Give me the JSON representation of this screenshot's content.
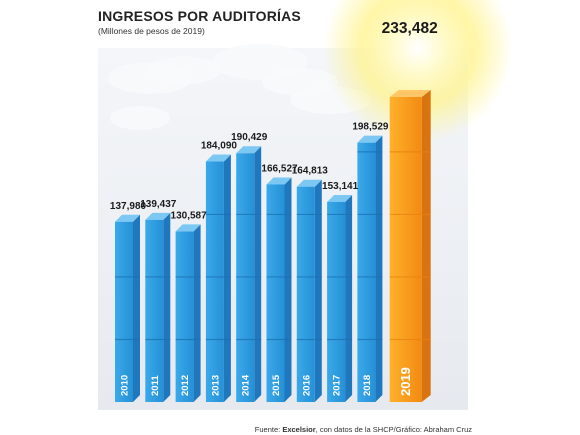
{
  "header": {
    "title": "INGRESOS POR AUDITORÍAS",
    "subtitle": "(Millones de pesos de 2019)"
  },
  "footer": {
    "source_prefix": "Fuente: ",
    "source_bold": "Excelsior",
    "source_rest": ", con datos de la SHCP/Gráfico: Abraham Cruz"
  },
  "colors": {
    "bar_blue": "#2e9be0",
    "bar_blue_dark": "#1c6fb3",
    "bar_orange": "#f7941d",
    "sun_glow": "#fff7a8",
    "sky": "#e9edf2"
  },
  "chart_data": {
    "type": "bar",
    "title": "INGRESOS POR AUDITORÍAS",
    "subtitle": "(Millones de pesos de 2019)",
    "xlabel": "",
    "ylabel": "",
    "categories": [
      "2010",
      "2011",
      "2012",
      "2013",
      "2014",
      "2015",
      "2016",
      "2017",
      "2018",
      "2019"
    ],
    "values": [
      137980,
      139437,
      130587,
      184090,
      190429,
      166527,
      164813,
      153141,
      198529,
      233482
    ],
    "value_labels": [
      "137,980",
      "139,437",
      "130,587",
      "184,090",
      "190,429",
      "166,527",
      "164,813",
      "153,141",
      "198,529",
      "233,482"
    ],
    "highlight_category": "2019",
    "grid": false,
    "legend": "none"
  }
}
